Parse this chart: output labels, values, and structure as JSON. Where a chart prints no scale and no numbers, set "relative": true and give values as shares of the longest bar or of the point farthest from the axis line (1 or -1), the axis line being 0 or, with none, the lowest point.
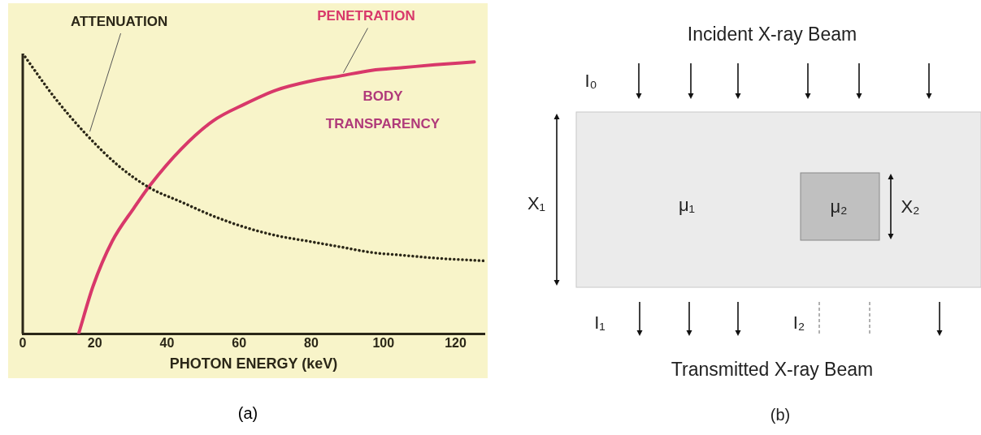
{
  "chart_data": [
    {
      "type": "line",
      "relative": true,
      "xlabel": "PHOTON ENERGY (keV)",
      "xlim": [
        0,
        128
      ],
      "xticks": [
        0,
        20,
        40,
        60,
        80,
        100,
        120
      ],
      "annotations": [
        "BODY TRANSPARENCY",
        "(a)"
      ],
      "series": [
        {
          "name": "ATTENUATION",
          "color": "#2b2718",
          "line_style": "dotted",
          "x": [
            0,
            9,
            17.7,
            26.5,
            35.3,
            44,
            52.8,
            61.6,
            70.4,
            79.2,
            88,
            96.7,
            105.5,
            114.3,
            128
          ],
          "values": [
            1,
            0.84,
            0.71,
            0.6,
            0.52,
            0.47,
            0.42,
            0.38,
            0.35,
            0.33,
            0.31,
            0.29,
            0.28,
            0.27,
            0.26
          ]
        },
        {
          "name": "PENETRATION",
          "color": "#d8386a",
          "line_style": "solid",
          "x": [
            15.5,
            19.5,
            24.8,
            30.9,
            35.3,
            44,
            52.8,
            61.6,
            70.4,
            79.2,
            88,
            96.7,
            105.5,
            114.3,
            125.2
          ],
          "values": [
            0,
            0.17,
            0.33,
            0.45,
            0.53,
            0.66,
            0.76,
            0.82,
            0.87,
            0.9,
            0.92,
            0.94,
            0.95,
            0.96,
            0.97
          ]
        }
      ]
    },
    {
      "type": "other",
      "annotations": [
        "Incident X-ray Beam",
        "I₀",
        "X₁",
        "μ₁",
        "μ₂",
        "X₂",
        "I₁",
        "I₂",
        "Transmitted X-ray Beam",
        "(b)"
      ]
    }
  ]
}
